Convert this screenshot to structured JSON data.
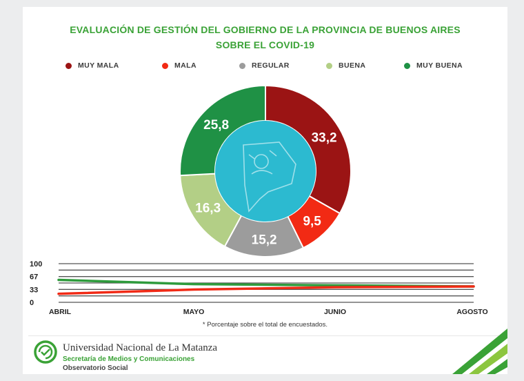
{
  "title_line1": "EVALUACIÓN DE GESTIÓN DEL GOBIERNO DE LA PROVINCIA DE BUENOS AIRES",
  "title_line2": "SOBRE EL COVID-19",
  "chart_data": [
    {
      "type": "pie",
      "variant": "donut",
      "categories": [
        "MUY MALA",
        "MALA",
        "REGULAR",
        "BUENA",
        "MUY BUENA"
      ],
      "values": [
        33.2,
        9.5,
        15.2,
        16.3,
        25.8
      ],
      "value_labels": [
        "33,2",
        "9,5",
        "15,2",
        "16,3",
        "25,8"
      ],
      "colors": [
        "#9b1414",
        "#f22a14",
        "#9c9c9c",
        "#b3cf86",
        "#1f9145"
      ],
      "center_color": "#2cbad0",
      "legend_position": "top"
    },
    {
      "type": "line",
      "x": [
        "ABRIL",
        "MAYO",
        "JUNIO",
        "AGOSTO"
      ],
      "yticks": [
        "100",
        "67",
        "33",
        "0"
      ],
      "ylim": [
        0,
        100
      ],
      "grid": true,
      "series": [
        {
          "color": "#2e9b3c",
          "values": [
            58,
            47,
            44,
            41
          ]
        },
        {
          "color": "#f12a16",
          "values": [
            22,
            33,
            39,
            41
          ]
        }
      ]
    }
  ],
  "footnote": "* Porcentaje sobre el total de encuestados.",
  "footer": {
    "university": "Universidad Nacional de La Matanza",
    "secretariat": "Secretaría de Medios y Comunicaciones",
    "observatory": "Observatorio Social"
  }
}
